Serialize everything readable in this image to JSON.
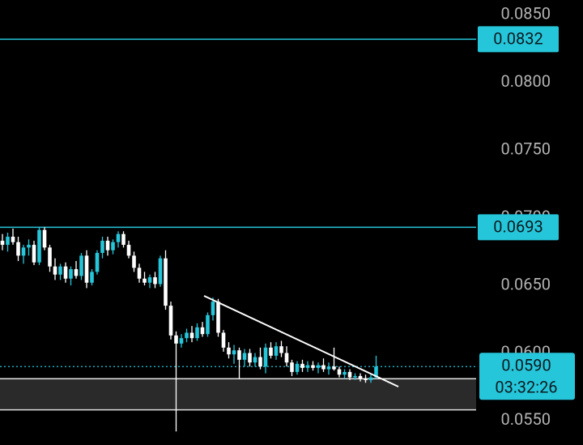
{
  "chart_data": {
    "type": "candlestick",
    "ylim": [
      0.0532,
      0.0861
    ],
    "yticks": [
      {
        "value": 0.085,
        "label": "0.0850"
      },
      {
        "value": 0.08,
        "label": "0.0800"
      },
      {
        "value": 0.075,
        "label": "0.0750"
      },
      {
        "value": 0.07,
        "label": "0.0700"
      },
      {
        "value": 0.065,
        "label": "0.0650"
      },
      {
        "value": 0.06,
        "label": "0.0600"
      },
      {
        "value": 0.055,
        "label": "0.0550"
      }
    ],
    "up_color": "#26c6da",
    "down_color": "#ffffff",
    "open": [
      0.0683,
      0.068,
      0.0686,
      0.0682,
      0.0672,
      0.0678,
      0.068,
      0.0667,
      0.0691,
      0.0678,
      0.0664,
      0.0658,
      0.0664,
      0.0655,
      0.0662,
      0.0657,
      0.0672,
      0.0652,
      0.066,
      0.0674,
      0.0683,
      0.0676,
      0.0682,
      0.0688,
      0.068,
      0.0672,
      0.0663,
      0.0655,
      0.0652,
      0.0656,
      0.0651,
      0.067,
      0.0635,
      0.0613,
      0.0607,
      0.0611,
      0.0615,
      0.0611,
      0.0619,
      0.0614,
      0.0628,
      0.0638,
      0.0615,
      0.0604,
      0.0599,
      0.0602,
      0.0595,
      0.06,
      0.0593,
      0.0597,
      0.059,
      0.0604,
      0.0598,
      0.0605,
      0.06,
      0.0593,
      0.0586,
      0.0592,
      0.0589,
      0.0591,
      0.0589,
      0.0591,
      0.0588,
      0.059,
      0.0588,
      0.0584,
      0.0586,
      0.0582,
      0.0583,
      0.0581,
      0.058,
      0.0582
    ],
    "high": [
      0.0688,
      0.0689,
      0.0692,
      0.0686,
      0.068,
      0.0684,
      0.0683,
      0.0693,
      0.0693,
      0.068,
      0.067,
      0.0666,
      0.0667,
      0.0664,
      0.0668,
      0.0674,
      0.0676,
      0.0662,
      0.0676,
      0.0686,
      0.0686,
      0.0684,
      0.069,
      0.069,
      0.0683,
      0.0675,
      0.0666,
      0.066,
      0.0658,
      0.066,
      0.0672,
      0.0676,
      0.0638,
      0.0616,
      0.0614,
      0.0618,
      0.062,
      0.0622,
      0.0623,
      0.063,
      0.0641,
      0.064,
      0.0617,
      0.0608,
      0.0606,
      0.0604,
      0.0603,
      0.0603,
      0.06,
      0.0604,
      0.0607,
      0.0608,
      0.0608,
      0.0609,
      0.0605,
      0.0595,
      0.0594,
      0.0595,
      0.0594,
      0.0594,
      0.0593,
      0.0596,
      0.0593,
      0.0604,
      0.059,
      0.0588,
      0.0588,
      0.0585,
      0.0585,
      0.0584,
      0.0584,
      0.0598
    ],
    "low": [
      0.0676,
      0.0675,
      0.068,
      0.0668,
      0.0666,
      0.0672,
      0.0665,
      0.0665,
      0.0676,
      0.066,
      0.0654,
      0.0654,
      0.0652,
      0.065,
      0.0655,
      0.0654,
      0.0648,
      0.065,
      0.0658,
      0.067,
      0.0672,
      0.0673,
      0.0678,
      0.0678,
      0.067,
      0.066,
      0.0652,
      0.065,
      0.0648,
      0.0648,
      0.0649,
      0.0632,
      0.061,
      0.0542,
      0.0604,
      0.0608,
      0.0608,
      0.0609,
      0.0612,
      0.0612,
      0.0624,
      0.0612,
      0.0601,
      0.0596,
      0.0592,
      0.0581,
      0.059,
      0.059,
      0.059,
      0.0588,
      0.0585,
      0.0596,
      0.0595,
      0.0597,
      0.059,
      0.0583,
      0.0584,
      0.0586,
      0.0586,
      0.0587,
      0.0585,
      0.0586,
      0.0584,
      0.0587,
      0.0582,
      0.0581,
      0.058,
      0.058,
      0.0579,
      0.0578,
      0.0578,
      0.0581
    ],
    "close": [
      0.068,
      0.0686,
      0.0682,
      0.0672,
      0.0678,
      0.068,
      0.0667,
      0.0691,
      0.0678,
      0.0664,
      0.0658,
      0.0664,
      0.0655,
      0.0662,
      0.0657,
      0.0672,
      0.0652,
      0.066,
      0.0674,
      0.0683,
      0.0676,
      0.0682,
      0.0688,
      0.068,
      0.0672,
      0.0663,
      0.0655,
      0.0652,
      0.0656,
      0.0651,
      0.067,
      0.0635,
      0.0613,
      0.0607,
      0.0611,
      0.0615,
      0.0611,
      0.0619,
      0.0614,
      0.0628,
      0.0638,
      0.0615,
      0.0604,
      0.0599,
      0.0602,
      0.0595,
      0.06,
      0.0593,
      0.0597,
      0.059,
      0.0604,
      0.0598,
      0.0605,
      0.06,
      0.0593,
      0.0586,
      0.0592,
      0.0589,
      0.0591,
      0.0589,
      0.0591,
      0.0588,
      0.059,
      0.0588,
      0.0584,
      0.0586,
      0.0582,
      0.0583,
      0.0581,
      0.058,
      0.0582,
      0.059
    ],
    "price_lines": [
      {
        "value": 0.0832,
        "label": "0.0832"
      },
      {
        "value": 0.0693,
        "label": "0.0693"
      }
    ],
    "price_line_color": "#26c6da",
    "zone": [
      0.0581,
      0.0558
    ],
    "current_price": {
      "value": 0.059,
      "label": "0.0590",
      "countdown": "03:32:26"
    }
  }
}
